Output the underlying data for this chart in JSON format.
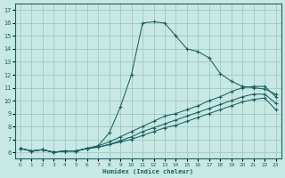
{
  "xlabel": "Humidex (Indice chaleur)",
  "bg_color": "#c8e8e4",
  "grid_color": "#a0c8c4",
  "line_color": "#1a6060",
  "xlim": [
    -0.5,
    23.5
  ],
  "ylim": [
    5.5,
    17.5
  ],
  "xticks": [
    0,
    1,
    2,
    3,
    4,
    5,
    6,
    7,
    8,
    9,
    10,
    11,
    12,
    13,
    14,
    15,
    16,
    17,
    18,
    19,
    20,
    21,
    22,
    23
  ],
  "yticks": [
    6,
    7,
    8,
    9,
    10,
    11,
    12,
    13,
    14,
    15,
    16,
    17
  ],
  "curve1_x": [
    0,
    1,
    2,
    3,
    4,
    5,
    6,
    7,
    8,
    9,
    10,
    11,
    12,
    13,
    14,
    15,
    16,
    17,
    18,
    19,
    20,
    21,
    22,
    23
  ],
  "curve1_y": [
    6.3,
    6.1,
    6.2,
    6.0,
    6.1,
    6.1,
    6.3,
    6.5,
    7.5,
    9.5,
    12.0,
    16.0,
    16.1,
    16.0,
    15.0,
    14.0,
    13.8,
    13.3,
    12.1,
    11.5,
    11.1,
    11.0,
    10.9,
    10.5
  ],
  "curve2_x": [
    0,
    1,
    2,
    3,
    4,
    5,
    6,
    7,
    8,
    9,
    10,
    11,
    12,
    13,
    14,
    15,
    16,
    17,
    18,
    19,
    20,
    21,
    22,
    23
  ],
  "curve2_y": [
    6.3,
    6.1,
    6.2,
    6.0,
    6.1,
    6.1,
    6.3,
    6.5,
    6.8,
    7.2,
    7.6,
    8.0,
    8.4,
    8.8,
    9.0,
    9.3,
    9.6,
    10.0,
    10.3,
    10.7,
    11.0,
    11.1,
    11.1,
    10.3
  ],
  "curve3_x": [
    0,
    1,
    2,
    3,
    4,
    5,
    6,
    7,
    8,
    9,
    10,
    11,
    12,
    13,
    14,
    15,
    16,
    17,
    18,
    19,
    20,
    21,
    22,
    23
  ],
  "curve3_y": [
    6.3,
    6.1,
    6.2,
    6.0,
    6.1,
    6.1,
    6.3,
    6.4,
    6.6,
    6.9,
    7.2,
    7.6,
    7.9,
    8.2,
    8.5,
    8.8,
    9.1,
    9.4,
    9.7,
    10.0,
    10.3,
    10.5,
    10.5,
    9.8
  ],
  "curve4_x": [
    0,
    1,
    2,
    3,
    4,
    5,
    6,
    7,
    8,
    9,
    10,
    11,
    12,
    13,
    14,
    15,
    16,
    17,
    18,
    19,
    20,
    21,
    22,
    23
  ],
  "curve4_y": [
    6.3,
    6.1,
    6.2,
    6.0,
    6.1,
    6.1,
    6.3,
    6.4,
    6.6,
    6.8,
    7.0,
    7.3,
    7.6,
    7.9,
    8.1,
    8.4,
    8.7,
    9.0,
    9.3,
    9.6,
    9.9,
    10.1,
    10.2,
    9.3
  ]
}
